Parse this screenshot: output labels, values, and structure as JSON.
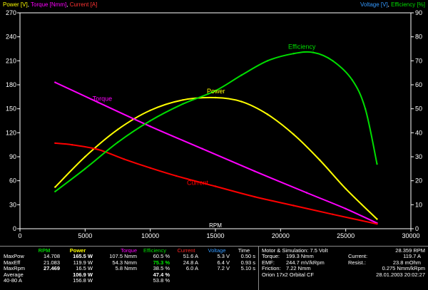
{
  "legend_left": {
    "power": "Power [V]",
    "comma1": ", ",
    "torque": "Torque [Nmm]",
    "comma2": ", ",
    "current": "Current [A]"
  },
  "legend_right": {
    "voltage": "Voltage [V]",
    "comma": ", ",
    "efficiency": "Efficiency [%]"
  },
  "colors": {
    "power": "#ffff00",
    "torque": "#ff00ff",
    "current": "#ff0000",
    "efficiency": "#00dd00",
    "voltage": "#3399ff",
    "axes": "#ffffff",
    "background": "#000000"
  },
  "chart_data": {
    "type": "line",
    "xlabel": "RPM",
    "xlim": [
      0,
      30000
    ],
    "x_ticks": [
      0,
      5000,
      10000,
      15000,
      20000,
      25000,
      30000
    ],
    "ylim_left": [
      0,
      270
    ],
    "y_ticks_left": [
      0,
      30,
      60,
      90,
      120,
      150,
      180,
      210,
      240,
      270
    ],
    "ylim_right": [
      0,
      90
    ],
    "y_ticks_right": [
      0,
      10,
      20,
      30,
      40,
      50,
      60,
      70,
      80,
      90
    ],
    "grid": false,
    "series": [
      {
        "name": "Power",
        "label": "Power",
        "axis": "left",
        "x": [
          2700,
          5000,
          7500,
          10000,
          12500,
          15000,
          17000,
          19000,
          21000,
          23000,
          25000,
          27400
        ],
        "y": [
          52,
          90,
          124,
          148,
          161,
          164,
          159,
          143,
          118,
          86,
          50,
          12
        ]
      },
      {
        "name": "Torque",
        "label": "Torque",
        "axis": "left",
        "x": [
          2700,
          6000,
          10000,
          14000,
          18000,
          22000,
          25000,
          27400
        ],
        "y": [
          183,
          158,
          128,
          100,
          72,
          45,
          25,
          7
        ]
      },
      {
        "name": "Current",
        "label": "Current",
        "axis": "left",
        "x": [
          2700,
          4000,
          6000,
          8000,
          10000,
          12000,
          15000,
          18000,
          21000,
          24000,
          27400
        ],
        "y": [
          107,
          105,
          99,
          87,
          76,
          66,
          53,
          40,
          29,
          18,
          6
        ]
      },
      {
        "name": "Efficiency",
        "label": "Efficiency",
        "axis": "right",
        "x": [
          2700,
          5000,
          7500,
          10000,
          12500,
          15000,
          17000,
          19000,
          21000,
          22500,
          24000,
          25500,
          26500,
          27400
        ],
        "y": [
          15.5,
          25,
          36,
          45,
          52,
          57.5,
          64,
          70,
          73,
          73.5,
          70,
          62,
          50,
          27
        ]
      }
    ]
  },
  "table": {
    "headers": {
      "rpm": "RPM",
      "power": "Power",
      "torque": "Torque",
      "efficiency": "Efficiency",
      "current": "Current",
      "voltage": "Voltage",
      "time": "Time"
    },
    "rows": [
      {
        "label": "MaxPow",
        "rpm": "14.708",
        "power": "165.5 W",
        "torque": "107.5 Nmm",
        "efficiency": "60.5 %",
        "current": "51.6 A",
        "voltage": "5.3 V",
        "time": "0.50 s"
      },
      {
        "label": "MaxEff",
        "rpm": "21.083",
        "power": "119.9 W",
        "torque": "54.3 Nmm",
        "efficiency": "75.3 %",
        "current": "24.8 A",
        "voltage": "6.4 V",
        "time": "0.93 s"
      },
      {
        "label": "MaxRpm",
        "rpm": "27.469",
        "power": "16.5 W",
        "torque": "5.8 Nmm",
        "efficiency": "38.5 %",
        "current": "6.0 A",
        "voltage": "7.2 V",
        "time": "5.10 s"
      },
      {
        "label": "Average",
        "rpm": "",
        "power": "106.9 W",
        "torque": "",
        "efficiency": "47.4 %",
        "current": "",
        "voltage": "",
        "time": ""
      },
      {
        "label": "40-80 A",
        "rpm": "",
        "power": "156.8 W",
        "torque": "",
        "efficiency": "53.8 %",
        "current": "",
        "voltage": "",
        "time": ""
      }
    ]
  },
  "sim": {
    "title": "Motor & Simulation: 7.5 Volt",
    "lines": [
      {
        "label": "Torque:",
        "value": "199.3 Nmm"
      },
      {
        "label": "EMF:",
        "value": "244.7 mV/kRpm"
      },
      {
        "label": "Friction:",
        "value": "7.22 Nmm"
      }
    ],
    "footer": "Orion 17x2 Orbital CF",
    "right_lines": [
      {
        "label": "",
        "value": "28.359 RPM"
      },
      {
        "label": "Current:",
        "value": "119.7 A"
      },
      {
        "label": "Resist.:",
        "value": "23.8 mOhm"
      },
      {
        "label": "",
        "value": "0.275 Nmm/kRpm"
      }
    ],
    "timestamp": "28.01.2003 20:02:27"
  }
}
